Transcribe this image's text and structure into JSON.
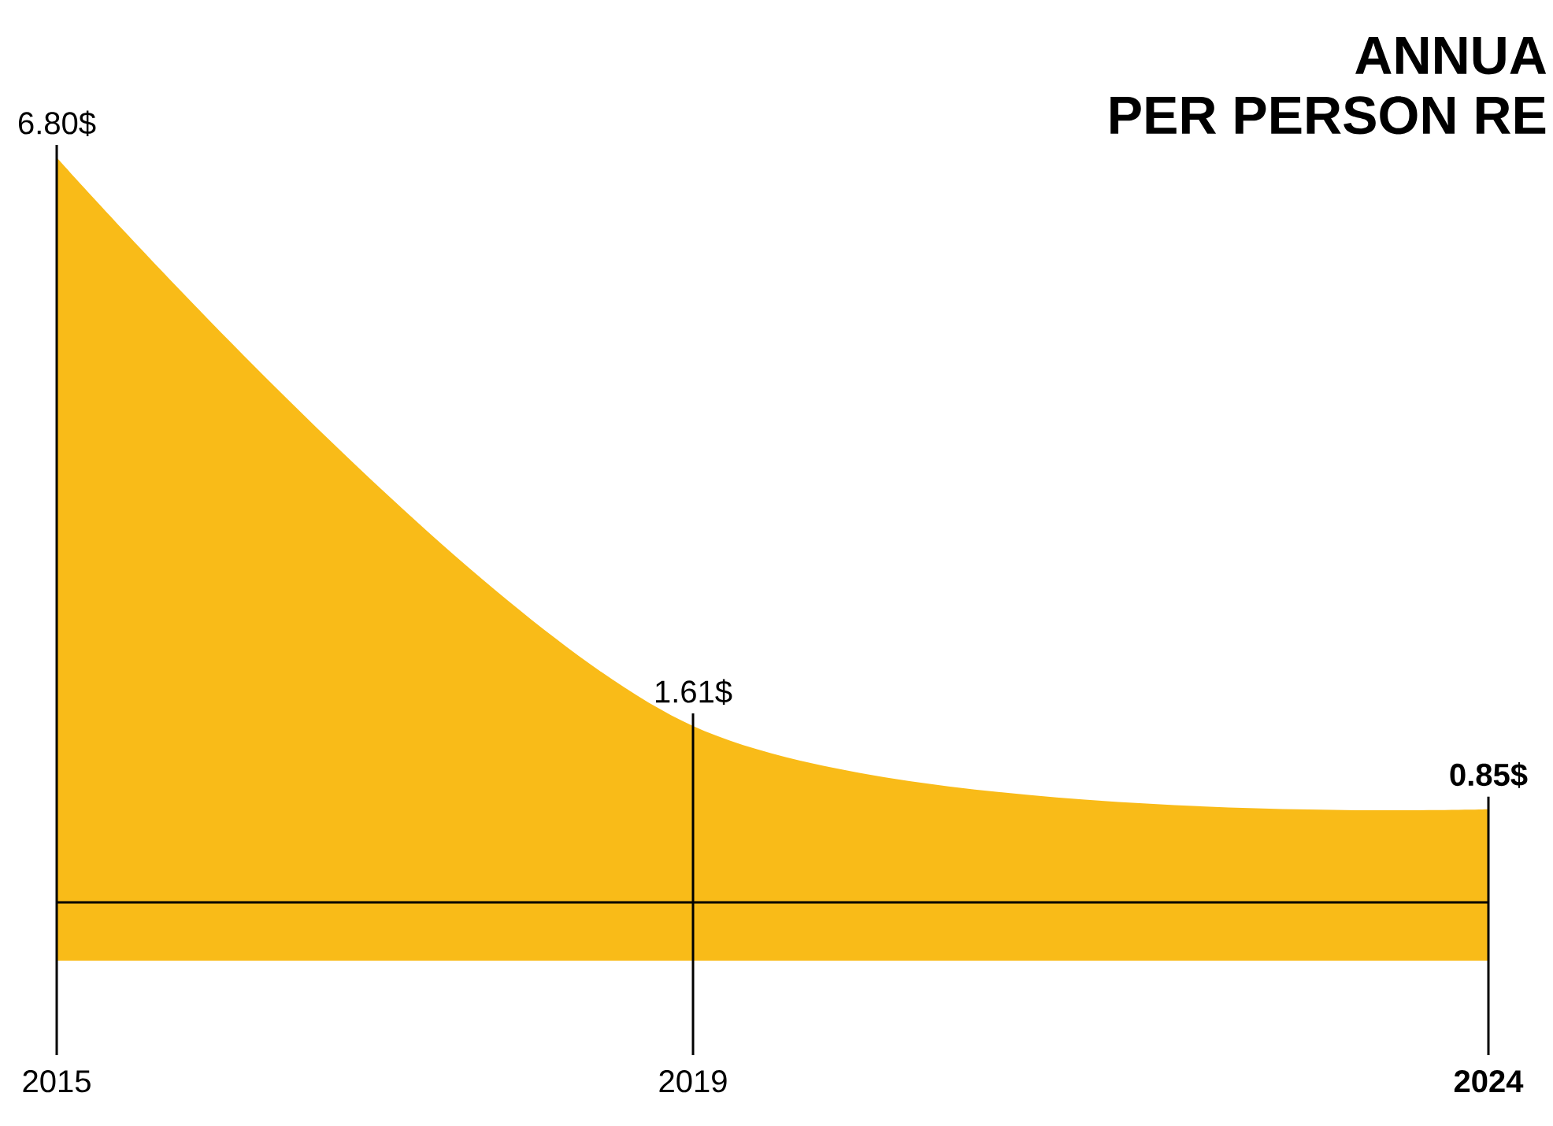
{
  "chart_data": {
    "type": "area",
    "title": "ANNUA",
    "subtitle": "PER PERSON RE",
    "x": [
      2015,
      2019,
      2024
    ],
    "values": [
      6.8,
      1.61,
      0.85
    ],
    "color": "#f9bb18",
    "value_labels": [
      "6.80$",
      "1.61$",
      "**0.85$**"
    ],
    "xlim": [
      2015,
      2024
    ],
    "xticks": [
      2015,
      2019,
      {
        "value": 2024,
        "label": "**2024**"
      }
    ],
    "grid": false
  }
}
